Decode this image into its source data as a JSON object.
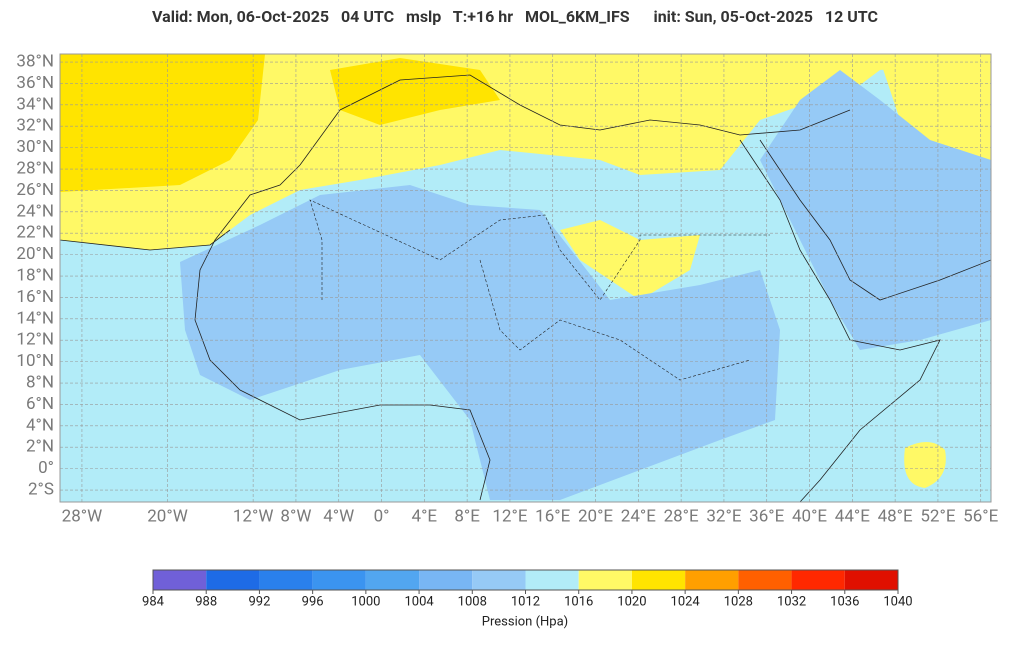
{
  "header": {
    "title": "Valid: Mon, 06-Oct-2025   04 UTC   mslp   T:+16 hr   MOL_6KM_IFS      init: Sun, 05-Oct-2025   12 UTC"
  },
  "map": {
    "lat_ticks": [
      {
        "value": 38,
        "label": "38°N"
      },
      {
        "value": 36,
        "label": "36°N"
      },
      {
        "value": 34,
        "label": "34°N"
      },
      {
        "value": 32,
        "label": "32°N"
      },
      {
        "value": 30,
        "label": "30°N"
      },
      {
        "value": 28,
        "label": "28°N"
      },
      {
        "value": 26,
        "label": "26°N"
      },
      {
        "value": 24,
        "label": "24°N"
      },
      {
        "value": 22,
        "label": "22°N"
      },
      {
        "value": 20,
        "label": "20°N"
      },
      {
        "value": 18,
        "label": "18°N"
      },
      {
        "value": 16,
        "label": "16°N"
      },
      {
        "value": 14,
        "label": "14°N"
      },
      {
        "value": 12,
        "label": "12°N"
      },
      {
        "value": 10,
        "label": "10°N"
      },
      {
        "value": 8,
        "label": "8°N"
      },
      {
        "value": 6,
        "label": "6°N"
      },
      {
        "value": 4,
        "label": "4°N"
      },
      {
        "value": 2,
        "label": "2°N"
      },
      {
        "value": 0,
        "label": "0°"
      },
      {
        "value": -2,
        "label": "2°S"
      }
    ],
    "lon_ticks": [
      {
        "value": -28,
        "label": "28°W"
      },
      {
        "value": -20,
        "label": "20°W"
      },
      {
        "value": -12,
        "label": "12°W"
      },
      {
        "value": -8,
        "label": "8°W"
      },
      {
        "value": -4,
        "label": "4°W"
      },
      {
        "value": 0,
        "label": "0°"
      },
      {
        "value": 4,
        "label": "4°E"
      },
      {
        "value": 8,
        "label": "8°E"
      },
      {
        "value": 12,
        "label": "12°E"
      },
      {
        "value": 16,
        "label": "16°E"
      },
      {
        "value": 20,
        "label": "20°E"
      },
      {
        "value": 24,
        "label": "24°E"
      },
      {
        "value": 28,
        "label": "28°E"
      },
      {
        "value": 32,
        "label": "32°E"
      },
      {
        "value": 36,
        "label": "36°E"
      },
      {
        "value": 40,
        "label": "40°E"
      },
      {
        "value": 44,
        "label": "44°E"
      },
      {
        "value": 48,
        "label": "48°E"
      },
      {
        "value": 52,
        "label": "52°E"
      },
      {
        "value": 56,
        "label": "56°E"
      }
    ]
  },
  "colorbar": {
    "label": "Pression (Hpa)",
    "ticks": [
      984,
      988,
      992,
      996,
      1000,
      1004,
      1008,
      1012,
      1016,
      1020,
      1024,
      1028,
      1032,
      1036,
      1040
    ],
    "colors": [
      "#7060d8",
      "#1e6be6",
      "#2a80ec",
      "#3b94f0",
      "#52a6f0",
      "#78b6f4",
      "#96caf6",
      "#b2ecf8",
      "#fff966",
      "#ffe400",
      "#ff9f00",
      "#ff6000",
      "#ff2800",
      "#e01000"
    ]
  }
}
